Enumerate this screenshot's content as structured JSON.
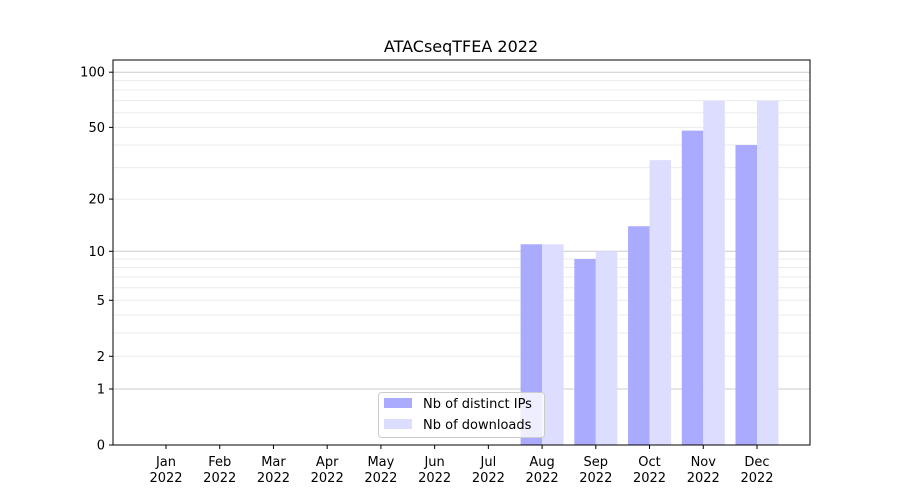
{
  "chart_data": {
    "type": "bar",
    "title": "ATACseqTFEA 2022",
    "xlabel": "",
    "ylabel": "",
    "yscale": "log(y+1)",
    "ylim": [
      0,
      116
    ],
    "yticks": [
      0,
      1,
      2,
      5,
      10,
      20,
      50,
      100
    ],
    "categories": [
      "Jan\n2022",
      "Feb\n2022",
      "Mar\n2022",
      "Apr\n2022",
      "May\n2022",
      "Jun\n2022",
      "Jul\n2022",
      "Aug\n2022",
      "Sep\n2022",
      "Oct\n2022",
      "Nov\n2022",
      "Dec\n2022"
    ],
    "series": [
      {
        "name": "Nb of distinct IPs",
        "color": "#aaaaff",
        "values": [
          0,
          0,
          0,
          0,
          0,
          0,
          0,
          11,
          9,
          14,
          48,
          40
        ]
      },
      {
        "name": "Nb of downloads",
        "color": "#ddddff",
        "values": [
          0,
          0,
          0,
          0,
          0,
          0,
          0,
          11,
          10,
          33,
          70,
          70
        ]
      }
    ],
    "grid": true,
    "legend": "bottom-center"
  }
}
